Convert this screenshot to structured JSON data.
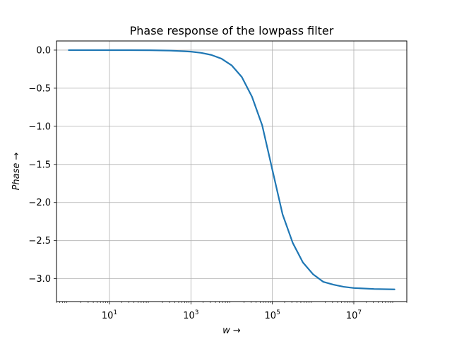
{
  "chart_data": {
    "type": "line",
    "title": "Phase response of the lowpass filter",
    "xlabel": "w →",
    "ylabel": "Phase →",
    "xscale": "log",
    "xlim": [
      0.5,
      200000000
    ],
    "ylim": [
      -3.3,
      0.12
    ],
    "grid": true,
    "line_color": "#1f77b4",
    "x_ticks": [
      {
        "value": 10,
        "base": "10",
        "exp": "1"
      },
      {
        "value": 1000,
        "base": "10",
        "exp": "3"
      },
      {
        "value": 100000,
        "base": "10",
        "exp": "5"
      },
      {
        "value": 10000000,
        "base": "10",
        "exp": "7"
      }
    ],
    "y_ticks": [
      {
        "value": 0.0,
        "label": "0.0"
      },
      {
        "value": -0.5,
        "label": "−0.5"
      },
      {
        "value": -1.0,
        "label": "−1.0"
      },
      {
        "value": -1.5,
        "label": "−1.5"
      },
      {
        "value": -2.0,
        "label": "−2.0"
      },
      {
        "value": -2.5,
        "label": "−2.5"
      },
      {
        "value": -3.0,
        "label": "−3.0"
      }
    ],
    "series": [
      {
        "x": [
          1,
          3.16,
          10,
          31.6,
          100,
          316,
          1000,
          1780,
          3160,
          5620,
          10000,
          17800,
          31600,
          56200,
          100000,
          178000,
          316000,
          562000,
          1000000,
          1780000,
          3160000,
          5620000,
          10000000,
          31600000,
          100000000
        ],
        "y": [
          0.0,
          -0.0001,
          -0.0002,
          -0.0006,
          -0.002,
          -0.006,
          -0.02,
          -0.036,
          -0.063,
          -0.112,
          -0.2,
          -0.354,
          -0.612,
          -0.986,
          -1.571,
          -2.155,
          -2.529,
          -2.787,
          -2.942,
          -3.041,
          -3.078,
          -3.106,
          -3.122,
          -3.135,
          -3.14
        ]
      }
    ]
  }
}
